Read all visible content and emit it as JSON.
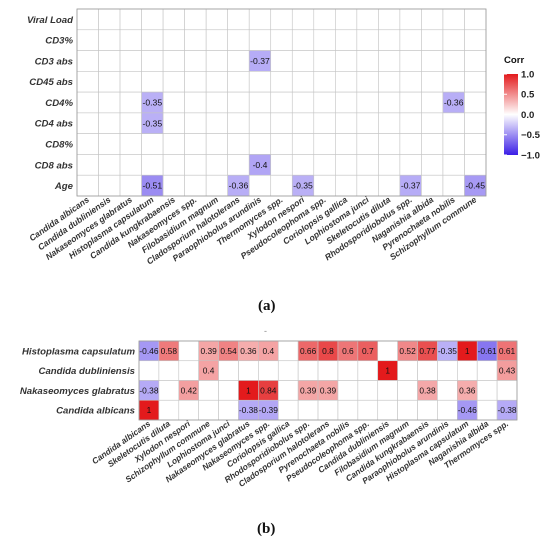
{
  "figure": {
    "label_a": "(a)",
    "label_b": "(b)",
    "mark_between": "-"
  },
  "chart_data": [
    {
      "type": "heatmap",
      "panel": "(a)",
      "rows": [
        "Viral Load",
        "CD3%",
        "CD3 abs",
        "CD45 abs",
        "CD4%",
        "CD4 abs",
        "CD8%",
        "CD8 abs",
        "Age"
      ],
      "columns": [
        "Candida albicans",
        "Candida dubliniensis",
        "Nakaseomyces glabratus",
        "Histoplasma capsulatum",
        "Candida kungkrabaensis",
        "Nakaseomyces spp.",
        "Filobasidium magnum",
        "Cladosporium halotolerans",
        "Paraophiobolus arundinis",
        "Thermomyces spp.",
        "Xylodon nespori",
        "Pseudocoleophoma spp.",
        "Coriolopsis gallica",
        "Lophiostoma junci",
        "Skeletocutis diluta",
        "Rhodosporidiobolus spp.",
        "Naganishia albida",
        "Pyrenochaeta nobilis",
        "Schizophyllum commune"
      ],
      "cells": [
        {
          "row": "CD3 abs",
          "col": "Paraophiobolus arundinis",
          "value": -0.37,
          "label": "-0.37"
        },
        {
          "row": "CD4%",
          "col": "Histoplasma capsulatum",
          "value": -0.35,
          "label": "-0.35"
        },
        {
          "row": "CD4%",
          "col": "Pyrenochaeta nobilis",
          "value": -0.36,
          "label": "-0.36"
        },
        {
          "row": "CD4 abs",
          "col": "Histoplasma capsulatum",
          "value": -0.35,
          "label": "-0.35"
        },
        {
          "row": "CD8 abs",
          "col": "Paraophiobolus arundinis",
          "value": -0.4,
          "label": "-0.4"
        },
        {
          "row": "Age",
          "col": "Histoplasma capsulatum",
          "value": -0.51,
          "label": "-0.51"
        },
        {
          "row": "Age",
          "col": "Cladosporium halotolerans",
          "value": -0.36,
          "label": "-0.36"
        },
        {
          "row": "Age",
          "col": "Xylodon nespori",
          "value": -0.35,
          "label": "-0.35"
        },
        {
          "row": "Age",
          "col": "Rhodosporidiobolus spp.",
          "value": -0.37,
          "label": "-0.37"
        },
        {
          "row": "Age",
          "col": "Schizophyllum commune",
          "value": -0.45,
          "label": "-0.45"
        }
      ],
      "legend": {
        "title": "Corr",
        "ticks": [
          1.0,
          0.5,
          0.0,
          -0.5,
          -1.0
        ],
        "tick_labels": [
          "1.0",
          "0.5",
          "0.0",
          "−0.5",
          "−1.0"
        ],
        "range": [
          -1,
          1
        ],
        "placement": "right",
        "colors": {
          "high": "#e31a1c",
          "mid": "#ffffff",
          "low": "#3b1ee6"
        }
      }
    },
    {
      "type": "heatmap",
      "panel": "(b)",
      "rows": [
        "Histoplasma capsulatum",
        "Candida dubliniensis",
        "Nakaseomyces glabratus",
        "Candida albicans"
      ],
      "columns": [
        "Candida albicans",
        "Skeletocutis diluta",
        "Xylodon nespori",
        "Schizophyllum commune",
        "Lophiostoma junci",
        "Nakaseomyces glabratus",
        "Nakaseomyces spp.",
        "Coriolopsis gallica",
        "Rhodosporidiobolus spp.",
        "Cladosporium halotolerans",
        "Pyrenochaeta nobilis",
        "Pseudocoleophoma spp.",
        "Candida dubliniensis",
        "Filobasidium magnum",
        "Candida kungkrabaensis",
        "Paraophiobolus arundinis",
        "Histoplasma capsulatum",
        "Naganishia albida",
        "Thermomyces spp."
      ],
      "cells": [
        {
          "row": "Histoplasma capsulatum",
          "col": "Candida albicans",
          "value": -0.46,
          "label": "-0.46"
        },
        {
          "row": "Histoplasma capsulatum",
          "col": "Skeletocutis diluta",
          "value": 0.58,
          "label": "0.58"
        },
        {
          "row": "Histoplasma capsulatum",
          "col": "Schizophyllum commune",
          "value": 0.39,
          "label": "0.39"
        },
        {
          "row": "Histoplasma capsulatum",
          "col": "Lophiostoma junci",
          "value": 0.54,
          "label": "0.54"
        },
        {
          "row": "Histoplasma capsulatum",
          "col": "Nakaseomyces glabratus",
          "value": 0.36,
          "label": "0.36"
        },
        {
          "row": "Histoplasma capsulatum",
          "col": "Nakaseomyces spp.",
          "value": 0.4,
          "label": "0.4"
        },
        {
          "row": "Histoplasma capsulatum",
          "col": "Rhodosporidiobolus spp.",
          "value": 0.66,
          "label": "0.66"
        },
        {
          "row": "Histoplasma capsulatum",
          "col": "Cladosporium halotolerans",
          "value": 0.8,
          "label": "0.8"
        },
        {
          "row": "Histoplasma capsulatum",
          "col": "Pyrenochaeta nobilis",
          "value": 0.6,
          "label": "0.6"
        },
        {
          "row": "Histoplasma capsulatum",
          "col": "Pseudocoleophoma spp.",
          "value": 0.7,
          "label": "0.7"
        },
        {
          "row": "Histoplasma capsulatum",
          "col": "Filobasidium magnum",
          "value": 0.52,
          "label": "0.52"
        },
        {
          "row": "Histoplasma capsulatum",
          "col": "Candida kungkrabaensis",
          "value": 0.77,
          "label": "0.77"
        },
        {
          "row": "Histoplasma capsulatum",
          "col": "Paraophiobolus arundinis",
          "value": -0.35,
          "label": "-0.35"
        },
        {
          "row": "Histoplasma capsulatum",
          "col": "Histoplasma capsulatum",
          "value": 1,
          "label": "1"
        },
        {
          "row": "Histoplasma capsulatum",
          "col": "Naganishia albida",
          "value": -0.61,
          "label": "-0.61"
        },
        {
          "row": "Histoplasma capsulatum",
          "col": "Thermomyces spp.",
          "value": 0.61,
          "label": "0.61"
        },
        {
          "row": "Candida dubliniensis",
          "col": "Schizophyllum commune",
          "value": 0.4,
          "label": "0.4"
        },
        {
          "row": "Candida dubliniensis",
          "col": "Candida dubliniensis",
          "value": 1,
          "label": "1"
        },
        {
          "row": "Candida dubliniensis",
          "col": "Thermomyces spp.",
          "value": 0.43,
          "label": "0.43"
        },
        {
          "row": "Nakaseomyces glabratus",
          "col": "Candida albicans",
          "value": -0.38,
          "label": "-0.38"
        },
        {
          "row": "Nakaseomyces glabratus",
          "col": "Xylodon nespori",
          "value": 0.42,
          "label": "0.42"
        },
        {
          "row": "Nakaseomyces glabratus",
          "col": "Nakaseomyces glabratus",
          "value": 1,
          "label": "1"
        },
        {
          "row": "Nakaseomyces glabratus",
          "col": "Nakaseomyces spp.",
          "value": 0.84,
          "label": "0.84"
        },
        {
          "row": "Nakaseomyces glabratus",
          "col": "Rhodosporidiobolus spp.",
          "value": 0.39,
          "label": "0.39"
        },
        {
          "row": "Nakaseomyces glabratus",
          "col": "Cladosporium halotolerans",
          "value": 0.39,
          "label": "0.39"
        },
        {
          "row": "Nakaseomyces glabratus",
          "col": "Candida kungkrabaensis",
          "value": 0.38,
          "label": "0.38"
        },
        {
          "row": "Nakaseomyces glabratus",
          "col": "Histoplasma capsulatum",
          "value": 0.36,
          "label": "0.36"
        },
        {
          "row": "Candida albicans",
          "col": "Candida albicans",
          "value": 1,
          "label": "1"
        },
        {
          "row": "Candida albicans",
          "col": "Nakaseomyces glabratus",
          "value": -0.38,
          "label": "-0.38"
        },
        {
          "row": "Candida albicans",
          "col": "Nakaseomyces spp.",
          "value": -0.39,
          "label": "-0.39"
        },
        {
          "row": "Candida albicans",
          "col": "Histoplasma capsulatum",
          "value": -0.46,
          "label": "-0.46"
        },
        {
          "row": "Candida albicans",
          "col": "Thermomyces spp.",
          "value": -0.38,
          "label": "-0.38"
        }
      ]
    }
  ]
}
